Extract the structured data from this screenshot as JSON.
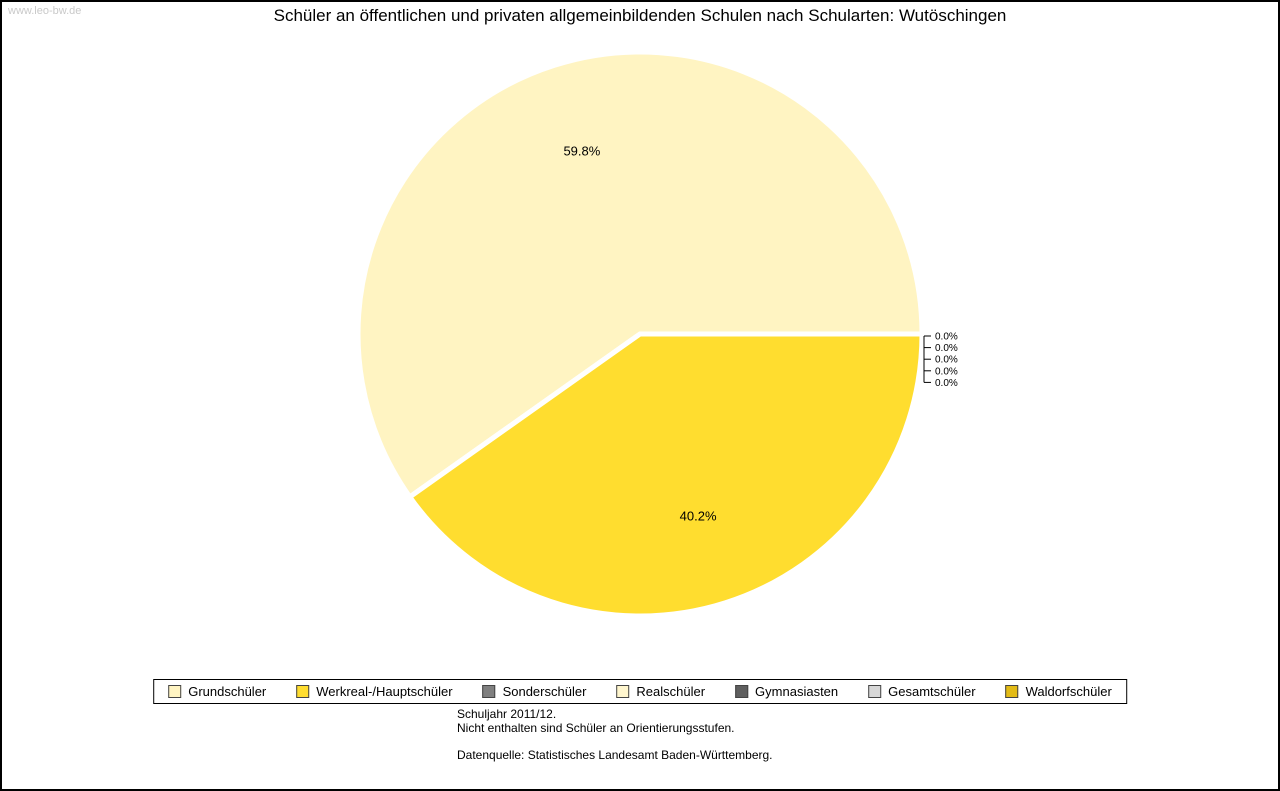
{
  "watermark": {
    "text": "www.leo-bw.de"
  },
  "chart_data": {
    "type": "pie",
    "title": "Schüler an öffentlichen und privaten allgemeinbildenden Schulen nach Schularten: Wutöschingen",
    "labels": [
      "Grundschüler",
      "Werkreal-/Hauptschüler",
      "Sonderschüler",
      "Realschüler",
      "Gymnasiasten",
      "Gesamtschüler",
      "Waldorfschüler"
    ],
    "values": [
      59.8,
      40.2,
      0.0,
      0.0,
      0.0,
      0.0,
      0.0
    ],
    "value_labels": [
      "59.8%",
      "40.2%",
      "0.0%",
      "0.0%",
      "0.0%",
      "0.0%",
      "0.0%"
    ],
    "colors": [
      "#FFF4C2",
      "#FFDD2F",
      "#808080",
      "#FFF6CE",
      "#5F5F5F",
      "#D8D8D8",
      "#E3BB15"
    ],
    "start_angle_deg": 0,
    "direction": "counterclockwise",
    "legend_position": "bottom",
    "slice_border_color": "#FFFFFF"
  },
  "footnotes": {
    "line1": "Schuljahr 2011/12.",
    "line2": "Nicht enthalten sind Schüler an Orientierungsstufen.",
    "line3": "Datenquelle: Statistisches Landesamt Baden-Württemberg."
  }
}
